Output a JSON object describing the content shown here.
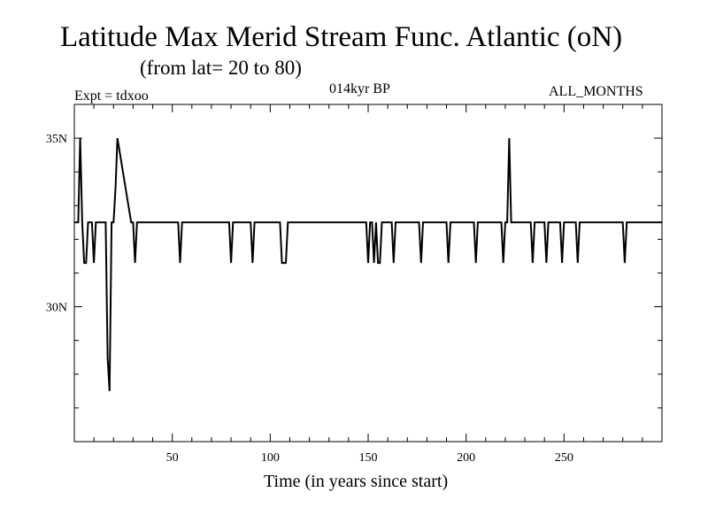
{
  "chart_data": {
    "type": "line",
    "title": "Latitude Max Merid Stream Func. Atlantic (oN)",
    "subtitle": "(from lat= 20 to 80)",
    "experiment": "Expt = tdxoo",
    "period": "014kyr BP",
    "months": "ALL_MONTHS",
    "xlabel": "Time (in years since start)",
    "ylabel": "",
    "xlim": [
      0,
      300
    ],
    "ylim": [
      26,
      36
    ],
    "xticks": [
      50,
      100,
      150,
      200,
      250
    ],
    "xtick_labels": [
      "50",
      "100",
      "150",
      "200",
      "250"
    ],
    "yticks": [
      30,
      35
    ],
    "ytick_labels": [
      "30N",
      "35N"
    ],
    "grid": false,
    "series": [
      {
        "color": "#000000",
        "x": [
          0,
          2,
          3,
          4,
          5,
          6,
          7,
          8,
          9,
          10,
          11,
          12,
          13,
          14,
          15,
          16,
          17,
          18,
          19,
          20,
          21,
          22,
          29,
          30,
          31,
          32,
          53,
          54,
          55,
          79,
          80,
          81,
          90,
          91,
          92,
          105,
          106,
          107,
          108,
          109,
          149,
          150,
          151,
          152,
          153,
          154,
          155,
          156,
          157,
          158,
          162,
          163,
          164,
          176,
          177,
          178,
          190,
          191,
          192,
          204,
          205,
          206,
          218,
          219,
          220,
          221,
          222,
          223,
          224,
          233,
          234,
          235,
          240,
          241,
          242,
          248,
          249,
          250,
          256,
          257,
          258,
          280,
          281,
          282,
          300
        ],
        "values": [
          32.5,
          32.5,
          35.0,
          32.5,
          31.3,
          31.3,
          32.5,
          32.5,
          32.5,
          31.3,
          32.5,
          32.5,
          32.5,
          32.5,
          32.5,
          32.5,
          28.5,
          27.5,
          32.5,
          32.5,
          33.5,
          35.0,
          32.5,
          32.5,
          31.3,
          32.5,
          32.5,
          31.3,
          32.5,
          32.5,
          31.3,
          32.5,
          32.5,
          31.3,
          32.5,
          32.5,
          31.3,
          31.3,
          31.3,
          32.5,
          32.5,
          31.3,
          32.5,
          32.5,
          31.3,
          32.5,
          31.3,
          31.3,
          32.5,
          32.5,
          32.5,
          31.3,
          32.5,
          32.5,
          31.3,
          32.5,
          32.5,
          31.3,
          32.5,
          32.5,
          31.3,
          32.5,
          32.5,
          31.3,
          32.5,
          32.5,
          35.0,
          32.5,
          32.5,
          32.5,
          31.3,
          32.5,
          32.5,
          31.3,
          32.5,
          32.5,
          31.3,
          32.5,
          32.5,
          31.3,
          32.5,
          32.5,
          31.3,
          32.5,
          32.5
        ]
      }
    ]
  }
}
